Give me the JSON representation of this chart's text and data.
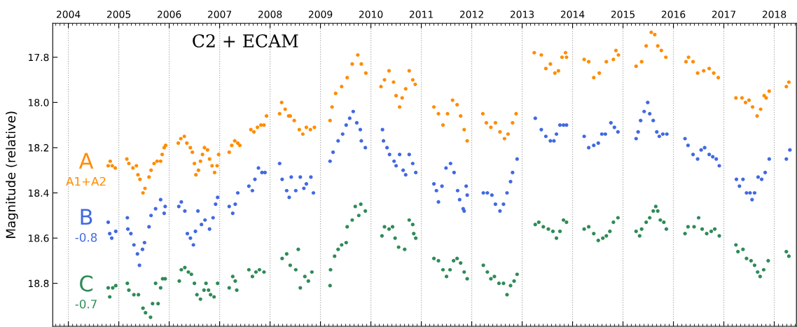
{
  "chart_data": {
    "type": "scatter",
    "title": "C2 + ECAM",
    "ylabel": "Magnitude (relative)",
    "annotations": [
      "A1+A2",
      "-0.8",
      "-0.7"
    ],
    "xlim": [
      2003.69,
      2018.44
    ],
    "ylim": [
      18.99,
      17.65
    ],
    "xticks": [
      2004,
      2005,
      2006,
      2007,
      2008,
      2009,
      2010,
      2011,
      2012,
      2013,
      2014,
      2015,
      2016,
      2017,
      2018
    ],
    "yticks": [
      17.8,
      {
        "value": 18.0,
        "label": "18.0"
      },
      18.2,
      18.4,
      18.6,
      18.8
    ],
    "grid": "x",
    "marker": "circle",
    "legend": false,
    "series": [
      {
        "name": "A",
        "color": "#ff8c00",
        "x": [
          2004.79,
          2004.83,
          2004.87,
          2004.93,
          2005.16,
          2005.2,
          2005.28,
          2005.35,
          2005.38,
          2005.42,
          2005.48,
          2005.52,
          2005.6,
          2005.64,
          2005.7,
          2005.76,
          2005.83,
          2005.86,
          2005.9,
          2005.93,
          2006.18,
          2006.23,
          2006.3,
          2006.35,
          2006.42,
          2006.46,
          2006.5,
          2006.53,
          2006.58,
          2006.62,
          2006.66,
          2006.7,
          2006.76,
          2006.8,
          2006.85,
          2006.9,
          2006.95,
          2006.98,
          2007.19,
          2007.24,
          2007.3,
          2007.36,
          2007.4,
          2007.62,
          2007.68,
          2007.75,
          2007.82,
          2007.88,
          2007.93,
          2008.19,
          2008.23,
          2008.3,
          2008.37,
          2008.4,
          2008.48,
          2008.58,
          2008.65,
          2008.72,
          2008.8,
          2008.88,
          2009.19,
          2009.23,
          2009.3,
          2009.42,
          2009.53,
          2009.63,
          2009.74,
          2009.81,
          2009.9,
          2010.2,
          2010.27,
          2010.36,
          2010.45,
          2010.5,
          2010.57,
          2010.62,
          2010.69,
          2010.76,
          2010.83,
          2010.88,
          2011.25,
          2011.34,
          2011.43,
          2011.52,
          2011.62,
          2011.71,
          2011.78,
          2011.85,
          2011.91,
          2012.22,
          2012.29,
          2012.38,
          2012.47,
          2012.56,
          2012.65,
          2012.72,
          2012.81,
          2012.88,
          2013.24,
          2013.38,
          2013.47,
          2013.56,
          2013.65,
          2013.72,
          2013.79,
          2013.86,
          2013.88,
          2014.23,
          2014.32,
          2014.42,
          2014.53,
          2014.67,
          2014.81,
          2014.86,
          2014.91,
          2015.26,
          2015.37,
          2015.46,
          2015.56,
          2015.63,
          2015.69,
          2015.76,
          2015.85,
          2016.25,
          2016.3,
          2016.39,
          2016.48,
          2016.6,
          2016.71,
          2016.8,
          2016.89,
          2017.24,
          2017.36,
          2017.43,
          2017.5,
          2017.57,
          2017.66,
          2017.73,
          2017.8,
          2017.84,
          2017.9,
          2018.24,
          2018.29
        ],
        "values": [
          18.28,
          18.26,
          18.28,
          18.29,
          18.25,
          18.27,
          18.29,
          18.28,
          18.32,
          18.34,
          18.4,
          18.38,
          18.33,
          18.3,
          18.27,
          18.26,
          18.26,
          18.23,
          18.2,
          18.19,
          18.18,
          18.16,
          18.15,
          18.18,
          18.2,
          18.22,
          18.27,
          18.32,
          18.3,
          18.26,
          18.23,
          18.2,
          18.21,
          18.25,
          18.28,
          18.31,
          18.28,
          18.23,
          18.22,
          18.19,
          18.17,
          18.18,
          18.19,
          18.12,
          18.13,
          18.11,
          18.1,
          18.1,
          18.06,
          18.05,
          18.0,
          18.03,
          18.06,
          18.06,
          18.08,
          18.12,
          18.14,
          18.11,
          18.12,
          18.11,
          18.08,
          18.02,
          17.96,
          17.93,
          17.89,
          17.83,
          17.79,
          17.83,
          17.87,
          17.93,
          17.9,
          17.86,
          17.91,
          17.97,
          18.02,
          17.98,
          17.94,
          17.86,
          17.9,
          17.92,
          18.02,
          18.05,
          18.1,
          18.05,
          17.99,
          18.01,
          18.06,
          18.12,
          18.17,
          18.05,
          18.09,
          18.11,
          18.09,
          18.13,
          18.16,
          18.14,
          18.09,
          18.05,
          17.78,
          17.79,
          17.85,
          17.83,
          17.87,
          17.86,
          17.8,
          17.78,
          17.8,
          17.81,
          17.82,
          17.89,
          17.87,
          17.82,
          17.81,
          17.77,
          17.79,
          17.84,
          17.82,
          17.75,
          17.69,
          17.7,
          17.75,
          17.77,
          17.8,
          17.82,
          17.8,
          17.82,
          17.87,
          17.86,
          17.85,
          17.87,
          17.89,
          17.98,
          17.98,
          18.0,
          17.99,
          18.02,
          18.06,
          18.03,
          17.97,
          17.98,
          17.95,
          17.93,
          17.91
        ]
      },
      {
        "name": "B",
        "color": "#4169e1",
        "x": [
          2004.79,
          2004.82,
          2004.86,
          2004.94,
          2005.17,
          2005.18,
          2005.24,
          2005.3,
          2005.37,
          2005.41,
          2005.47,
          2005.51,
          2005.6,
          2005.64,
          2005.73,
          2005.83,
          2005.9,
          2005.92,
          2006.19,
          2006.24,
          2006.31,
          2006.36,
          2006.42,
          2006.48,
          2006.52,
          2006.57,
          2006.64,
          2006.71,
          2006.8,
          2006.87,
          2006.92,
          2006.96,
          2007.19,
          2007.26,
          2007.31,
          2007.36,
          2007.58,
          2007.65,
          2007.7,
          2007.77,
          2007.84,
          2007.9,
          2008.19,
          2008.24,
          2008.33,
          2008.38,
          2008.42,
          2008.51,
          2008.6,
          2008.67,
          2008.72,
          2008.81,
          2008.86,
          2009.19,
          2009.25,
          2009.35,
          2009.44,
          2009.51,
          2009.58,
          2009.65,
          2009.72,
          2009.79,
          2009.81,
          2009.89,
          2010.23,
          2010.25,
          2010.32,
          2010.37,
          2010.46,
          2010.5,
          2010.57,
          2010.64,
          2010.69,
          2010.76,
          2010.83,
          2010.89,
          2011.25,
          2011.3,
          2011.34,
          2011.41,
          2011.49,
          2011.58,
          2011.65,
          2011.72,
          2011.76,
          2011.83,
          2011.85,
          2011.89,
          2011.91,
          2012.23,
          2012.31,
          2012.4,
          2012.47,
          2012.56,
          2012.63,
          2012.7,
          2012.77,
          2012.81,
          2012.9,
          2013.26,
          2013.38,
          2013.47,
          2013.56,
          2013.63,
          2013.68,
          2013.75,
          2013.82,
          2013.88,
          2014.23,
          2014.32,
          2014.42,
          2014.51,
          2014.58,
          2014.65,
          2014.76,
          2014.83,
          2014.9,
          2015.26,
          2015.3,
          2015.35,
          2015.42,
          2015.49,
          2015.53,
          2015.6,
          2015.67,
          2015.72,
          2015.79,
          2015.87,
          2016.23,
          2016.29,
          2016.39,
          2016.48,
          2016.55,
          2016.62,
          2016.71,
          2016.78,
          2016.85,
          2016.91,
          2017.25,
          2017.31,
          2017.38,
          2017.45,
          2017.52,
          2017.56,
          2017.61,
          2017.68,
          2017.75,
          2017.82,
          2017.9,
          2018.24,
          2018.31
        ],
        "values": [
          18.53,
          18.58,
          18.6,
          18.57,
          18.51,
          18.56,
          18.58,
          18.63,
          18.67,
          18.72,
          18.65,
          18.62,
          18.55,
          18.5,
          18.47,
          18.43,
          18.49,
          18.46,
          18.46,
          18.44,
          18.48,
          18.58,
          18.6,
          18.63,
          18.57,
          18.48,
          18.54,
          18.52,
          18.56,
          18.51,
          18.45,
          18.42,
          18.46,
          18.49,
          18.45,
          18.4,
          18.37,
          18.39,
          18.34,
          18.29,
          18.31,
          18.31,
          18.27,
          18.34,
          18.39,
          18.42,
          18.33,
          18.39,
          18.33,
          18.38,
          18.36,
          18.33,
          18.4,
          18.26,
          18.22,
          18.17,
          18.14,
          18.1,
          18.07,
          18.04,
          18.09,
          18.12,
          18.17,
          18.2,
          18.12,
          18.17,
          18.2,
          18.23,
          18.26,
          18.28,
          18.23,
          18.3,
          18.32,
          18.23,
          18.27,
          18.31,
          18.36,
          18.39,
          18.44,
          18.37,
          18.29,
          18.27,
          18.31,
          18.39,
          18.43,
          18.47,
          18.48,
          18.37,
          18.41,
          18.4,
          18.4,
          18.41,
          18.45,
          18.48,
          18.45,
          18.4,
          18.35,
          18.31,
          18.25,
          18.07,
          18.12,
          18.15,
          18.17,
          18.17,
          18.14,
          18.1,
          18.1,
          18.1,
          18.15,
          18.2,
          18.19,
          18.18,
          18.14,
          18.14,
          18.09,
          18.11,
          18.13,
          18.16,
          18.13,
          18.08,
          18.04,
          18.0,
          18.05,
          18.08,
          18.13,
          18.15,
          18.14,
          18.14,
          18.16,
          18.19,
          18.23,
          18.25,
          18.21,
          18.2,
          18.23,
          18.24,
          18.25,
          18.28,
          18.34,
          18.37,
          18.34,
          18.4,
          18.4,
          18.43,
          18.4,
          18.33,
          18.34,
          18.31,
          18.25,
          18.25,
          18.21
        ]
      },
      {
        "name": "C",
        "color": "#2e8b57",
        "x": [
          2004.79,
          2004.82,
          2004.88,
          2004.94,
          2005.17,
          2005.2,
          2005.3,
          2005.39,
          2005.48,
          2005.53,
          2005.63,
          2005.67,
          2005.73,
          2005.78,
          2005.83,
          2005.87,
          2005.92,
          2006.2,
          2006.24,
          2006.31,
          2006.38,
          2006.44,
          2006.5,
          2006.55,
          2006.62,
          2006.69,
          2006.73,
          2006.78,
          2006.82,
          2006.89,
          2006.96,
          2007.19,
          2007.26,
          2007.31,
          2007.34,
          2007.58,
          2007.65,
          2007.72,
          2007.79,
          2007.88,
          2008.24,
          2008.33,
          2008.4,
          2008.51,
          2008.56,
          2008.6,
          2008.69,
          2008.76,
          2008.83,
          2009.19,
          2009.2,
          2009.28,
          2009.35,
          2009.42,
          2009.51,
          2009.53,
          2009.63,
          2009.69,
          2009.76,
          2009.8,
          2009.89,
          2010.22,
          2010.27,
          2010.36,
          2010.43,
          2010.48,
          2010.55,
          2010.67,
          2010.76,
          2010.83,
          2010.85,
          2010.89,
          2011.25,
          2011.34,
          2011.43,
          2011.5,
          2011.57,
          2011.64,
          2011.71,
          2011.78,
          2011.85,
          2011.91,
          2012.23,
          2012.31,
          2012.38,
          2012.45,
          2012.54,
          2012.63,
          2012.7,
          2012.77,
          2012.84,
          2012.9,
          2013.26,
          2013.33,
          2013.42,
          2013.52,
          2013.61,
          2013.68,
          2013.75,
          2013.82,
          2013.88,
          2014.23,
          2014.32,
          2014.42,
          2014.51,
          2014.6,
          2014.67,
          2014.74,
          2014.81,
          2014.9,
          2015.26,
          2015.33,
          2015.37,
          2015.46,
          2015.53,
          2015.6,
          2015.65,
          2015.69,
          2015.74,
          2015.81,
          2015.86,
          2016.23,
          2016.29,
          2016.41,
          2016.5,
          2016.57,
          2016.66,
          2016.75,
          2016.82,
          2016.91,
          2017.24,
          2017.28,
          2017.38,
          2017.45,
          2017.54,
          2017.61,
          2017.67,
          2017.72,
          2017.79,
          2017.88,
          2018.24,
          2018.29
        ],
        "values": [
          18.82,
          18.86,
          18.82,
          18.81,
          18.8,
          18.83,
          18.85,
          18.85,
          18.91,
          18.93,
          18.95,
          18.89,
          18.8,
          18.89,
          18.82,
          18.78,
          18.78,
          18.79,
          18.74,
          18.73,
          18.75,
          18.76,
          18.8,
          18.85,
          18.87,
          18.83,
          18.8,
          18.83,
          18.85,
          18.86,
          18.8,
          18.82,
          18.77,
          18.79,
          18.83,
          18.74,
          18.77,
          18.75,
          18.74,
          18.75,
          18.69,
          18.67,
          18.72,
          18.74,
          18.65,
          18.82,
          18.77,
          18.79,
          18.75,
          18.81,
          18.74,
          18.68,
          18.65,
          18.63,
          18.62,
          18.55,
          18.52,
          18.46,
          18.5,
          18.45,
          18.48,
          18.59,
          18.55,
          18.56,
          18.55,
          18.6,
          18.64,
          18.65,
          18.52,
          18.54,
          18.58,
          18.6,
          18.69,
          18.7,
          18.74,
          18.77,
          18.74,
          18.7,
          18.69,
          18.71,
          18.75,
          18.78,
          18.72,
          18.75,
          18.78,
          18.77,
          18.8,
          18.8,
          18.85,
          18.81,
          18.79,
          18.76,
          18.54,
          18.53,
          18.55,
          18.56,
          18.57,
          18.6,
          18.57,
          18.52,
          18.53,
          18.56,
          18.55,
          18.58,
          18.61,
          18.6,
          18.59,
          18.57,
          18.53,
          18.51,
          18.57,
          18.59,
          18.56,
          18.53,
          18.51,
          18.48,
          18.46,
          18.48,
          18.52,
          18.53,
          18.56,
          18.58,
          18.55,
          18.55,
          18.51,
          18.56,
          18.58,
          18.57,
          18.56,
          18.59,
          18.63,
          18.66,
          18.65,
          18.69,
          18.7,
          18.72,
          18.75,
          18.77,
          18.74,
          18.7,
          18.66,
          18.68
        ]
      }
    ]
  }
}
